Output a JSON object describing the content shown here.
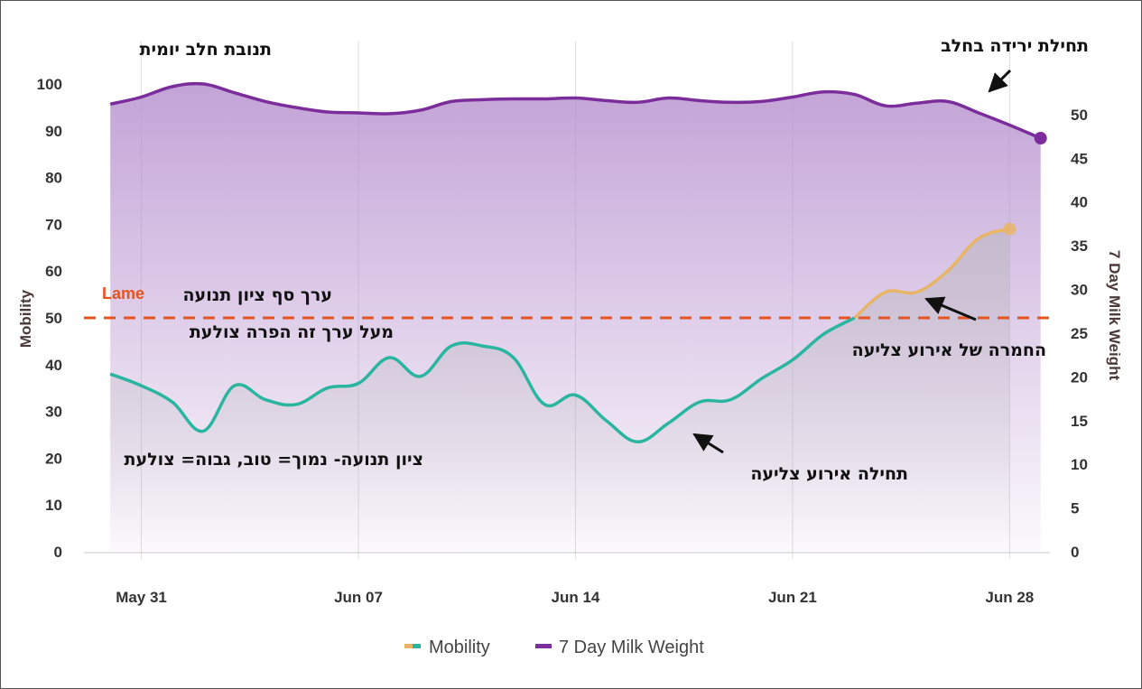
{
  "chart_data": {
    "type": "line",
    "x_ticks": [
      "May 31",
      "Jun 07",
      "Jun 14",
      "Jun 21",
      "Jun 28"
    ],
    "x_range": [
      "May 30",
      "Jun 29"
    ],
    "y_left": {
      "label": "Mobility",
      "ticks": [
        "0",
        "10",
        "20",
        "30",
        "40",
        "50",
        "60",
        "70",
        "80",
        "90",
        "100"
      ],
      "ylim": [
        0,
        100
      ]
    },
    "y_right": {
      "label": "7 Day Milk Weight",
      "ticks": [
        "0",
        "5",
        "10",
        "15",
        "20",
        "25",
        "30",
        "35",
        "40",
        "45",
        "50"
      ],
      "ylim": [
        0,
        53.5
      ]
    },
    "threshold": {
      "label": "Lame",
      "value": 50,
      "color": "#e8541e"
    },
    "series": [
      {
        "name": "Mobility",
        "axis": "left",
        "color_low": "#2ab5a0",
        "color_high": "#e8b567",
        "points": [
          [
            "May 30",
            38
          ],
          [
            "May 31",
            35.5
          ],
          [
            "Jun 01",
            32
          ],
          [
            "Jun 02",
            25.8
          ],
          [
            "Jun 03",
            35.5
          ],
          [
            "Jun 04",
            32.5
          ],
          [
            "Jun 05",
            31.5
          ],
          [
            "Jun 06",
            35
          ],
          [
            "Jun 07",
            36
          ],
          [
            "Jun 08",
            41.5
          ],
          [
            "Jun 09",
            37.5
          ],
          [
            "Jun 10",
            44
          ],
          [
            "Jun 11",
            44
          ],
          [
            "Jun 12",
            41.5
          ],
          [
            "Jun 13",
            31.5
          ],
          [
            "Jun 14",
            33.5
          ],
          [
            "Jun 15",
            28
          ],
          [
            "Jun 16",
            23.5
          ],
          [
            "Jun 17",
            27.5
          ],
          [
            "Jun 18",
            32
          ],
          [
            "Jun 19",
            32.5
          ],
          [
            "Jun 20",
            37
          ],
          [
            "Jun 21",
            41
          ],
          [
            "Jun 22",
            46.5
          ],
          [
            "Jun 23",
            50
          ],
          [
            "Jun 24",
            55.5
          ],
          [
            "Jun 25",
            55.5
          ],
          [
            "Jun 26",
            60
          ],
          [
            "Jun 27",
            67
          ],
          [
            "Jun 28",
            69
          ]
        ]
      },
      {
        "name": "7 Day Milk Weight",
        "axis": "right",
        "color": "#7b2d9b",
        "points": [
          [
            "May 30",
            51.2
          ],
          [
            "May 31",
            52
          ],
          [
            "Jun 01",
            53.2
          ],
          [
            "Jun 02",
            53.5
          ],
          [
            "Jun 03",
            52.5
          ],
          [
            "Jun 04",
            51.5
          ],
          [
            "Jun 05",
            50.8
          ],
          [
            "Jun 06",
            50.3
          ],
          [
            "Jun 07",
            50.2
          ],
          [
            "Jun 08",
            50.1
          ],
          [
            "Jun 09",
            50.5
          ],
          [
            "Jun 10",
            51.5
          ],
          [
            "Jun 11",
            51.7
          ],
          [
            "Jun 12",
            51.8
          ],
          [
            "Jun 13",
            51.8
          ],
          [
            "Jun 14",
            51.9
          ],
          [
            "Jun 15",
            51.6
          ],
          [
            "Jun 16",
            51.4
          ],
          [
            "Jun 17",
            51.9
          ],
          [
            "Jun 18",
            51.6
          ],
          [
            "Jun 19",
            51.4
          ],
          [
            "Jun 20",
            51.5
          ],
          [
            "Jun 21",
            52
          ],
          [
            "Jun 22",
            52.6
          ],
          [
            "Jun 23",
            52.3
          ],
          [
            "Jun 24",
            51
          ],
          [
            "Jun 25",
            51.3
          ],
          [
            "Jun 26",
            51.5
          ],
          [
            "Jun 27",
            50.2
          ],
          [
            "Jun 28",
            48.8
          ],
          [
            "Jun 29",
            47.3
          ]
        ]
      }
    ],
    "annotations": [
      {
        "id": "milk_title",
        "text": "תנובת חלב יומית"
      },
      {
        "id": "milk_drop",
        "text": "תחילת ירידה בחלב"
      },
      {
        "id": "lame_line1",
        "text": "ערך סף ציון תנועה"
      },
      {
        "id": "lame_line2",
        "text": "מעל ערך זה הפרה צולעת"
      },
      {
        "id": "mobility_info",
        "text": "ציון תנועה- נמוך= טוב, גבוה= צולעת"
      },
      {
        "id": "lame_start",
        "text": "תחילה אירוע צליעה"
      },
      {
        "id": "lame_worse",
        "text": "החמרה של אירוע צליעה"
      }
    ],
    "legend": {
      "position": "bottom-center"
    },
    "grid": {
      "vertical": true,
      "horizontal": false
    }
  }
}
